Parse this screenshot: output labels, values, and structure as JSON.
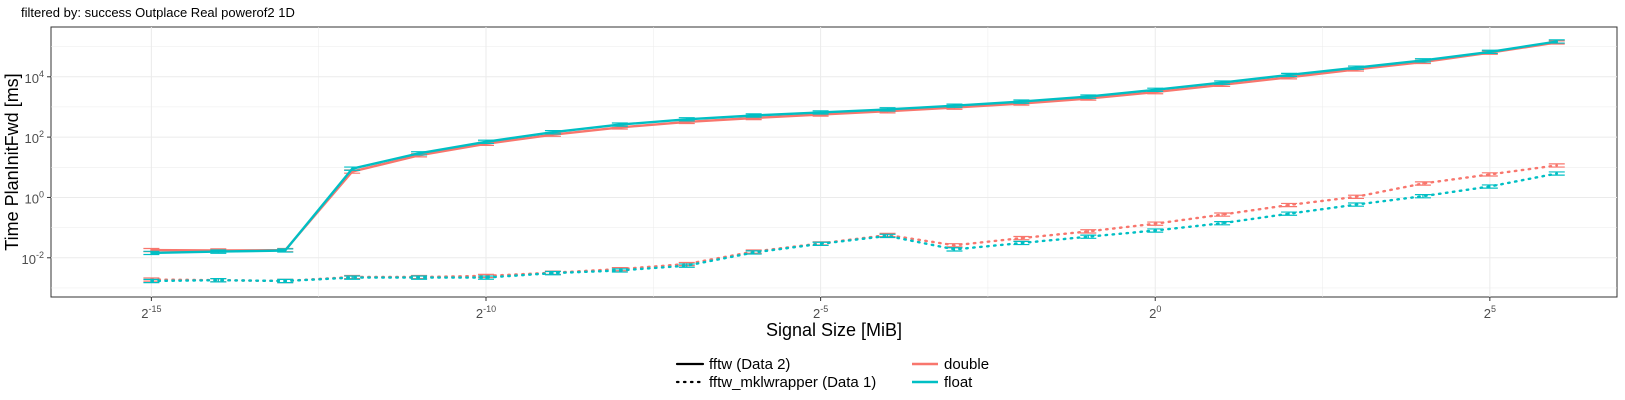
{
  "chart_data": {
    "type": "line",
    "title": "filtered by: success Outplace Real powerof2 1D",
    "xlabel": "Signal Size [MiB]",
    "ylabel": "Time PlanInitFwd [ms]",
    "x_scale": "log2",
    "y_scale": "log10",
    "xlim": [
      -16.5,
      6.9
    ],
    "ylim": [
      -3.3,
      5.65
    ],
    "x_ticks": [
      {
        "value": -15,
        "base": "2",
        "exp": "-15"
      },
      {
        "value": -10,
        "base": "2",
        "exp": "-10"
      },
      {
        "value": -5,
        "base": "2",
        "exp": "-5"
      },
      {
        "value": 0,
        "base": "2",
        "exp": "0"
      },
      {
        "value": 5,
        "base": "2",
        "exp": "5"
      }
    ],
    "y_ticks": [
      {
        "value": -2,
        "base": "10",
        "exp": "-2"
      },
      {
        "value": 0,
        "base": "10",
        "exp": "0"
      },
      {
        "value": 2,
        "base": "10",
        "exp": "2"
      },
      {
        "value": 4,
        "base": "10",
        "exp": "4"
      }
    ],
    "x": [
      -15,
      -14,
      -13,
      -12,
      -11,
      -10,
      -9,
      -8,
      -7,
      -6,
      -5,
      -4,
      -3,
      -2,
      -1,
      0,
      1,
      2,
      3,
      4,
      5,
      6
    ],
    "grid": true,
    "legend_position": "bottom",
    "series": [
      {
        "name": "fftw (Data 2) double",
        "library": "fftw (Data 2)",
        "precision": "double",
        "linestyle": "solid",
        "color": "#F8766D",
        "values": [
          0.018,
          0.0175,
          0.018,
          7.2,
          25,
          60,
          120,
          210,
          320,
          430,
          560,
          720,
          950,
          1300,
          1900,
          3100,
          5400,
          9600,
          17500,
          31000,
          63000,
          137000
        ]
      },
      {
        "name": "fftw (Data 2) float",
        "library": "fftw (Data 2)",
        "precision": "float",
        "linestyle": "solid",
        "color": "#00BFC4",
        "values": [
          0.0145,
          0.016,
          0.0175,
          9,
          29,
          70,
          145,
          260,
          390,
          520,
          660,
          830,
          1100,
          1500,
          2200,
          3700,
          6400,
          11500,
          20000,
          35000,
          67000,
          148000
        ]
      },
      {
        "name": "fftw_mklwrapper (Data 1) double",
        "library": "fftw_mklwrapper (Data 1)",
        "precision": "double",
        "linestyle": "dotted",
        "color": "#F8766D",
        "values": [
          0.0019,
          0.0018,
          0.0017,
          0.0023,
          0.0023,
          0.0025,
          0.0032,
          0.0042,
          0.0062,
          0.016,
          0.03,
          0.057,
          0.026,
          0.045,
          0.075,
          0.135,
          0.27,
          0.56,
          1.05,
          2.9,
          5.8,
          11.5
        ]
      },
      {
        "name": "fftw_mklwrapper (Data 1) float",
        "library": "fftw_mklwrapper (Data 1)",
        "precision": "float",
        "linestyle": "dotted",
        "color": "#00BFC4",
        "values": [
          0.0017,
          0.0018,
          0.0017,
          0.0022,
          0.0022,
          0.0022,
          0.0031,
          0.0038,
          0.0055,
          0.015,
          0.029,
          0.053,
          0.019,
          0.031,
          0.05,
          0.08,
          0.14,
          0.29,
          0.58,
          1.1,
          2.3,
          6.2
        ]
      }
    ],
    "legend": {
      "linetypes": [
        {
          "label": "fftw (Data 2)",
          "linestyle": "solid"
        },
        {
          "label": "fftw_mklwrapper (Data 1)",
          "linestyle": "dotted"
        }
      ],
      "colors": [
        {
          "label": "double",
          "color": "#F8766D"
        },
        {
          "label": "float",
          "color": "#00BFC4"
        }
      ]
    }
  }
}
